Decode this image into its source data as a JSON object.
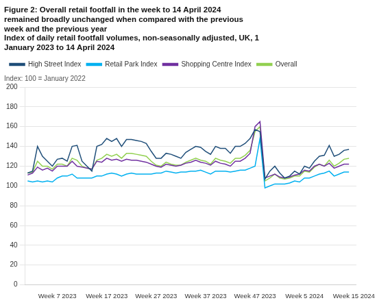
{
  "chart_data": {
    "type": "line",
    "title": [
      "Figure 2: Overall retail footfall in the week to 14 April 2024",
      "remained broadly unchanged when compared with the previous",
      "week and the previous year"
    ],
    "subtitle": [
      "Index of daily retail footfall volumes, non-seasonally adjusted, UK, 1",
      "January 2023 to 14 April 2024"
    ],
    "annotations": [
      "Index: 100 = January 2022"
    ],
    "categories": [
      null,
      null,
      null,
      null,
      null,
      null,
      "Week 7 2023",
      null,
      null,
      null,
      null,
      null,
      null,
      null,
      null,
      null,
      "Week 17 2023",
      null,
      null,
      null,
      null,
      null,
      null,
      null,
      null,
      null,
      "Week 27 2023",
      null,
      null,
      null,
      null,
      null,
      null,
      null,
      null,
      null,
      "Week 37 2023",
      null,
      null,
      null,
      null,
      null,
      null,
      null,
      null,
      null,
      "Week 47 2023",
      null,
      null,
      null,
      null,
      null,
      null,
      null,
      null,
      null,
      "Week 5 2024",
      null,
      null,
      null,
      null,
      null,
      null,
      null,
      null,
      null,
      "Week 15 2024"
    ],
    "series": [
      {
        "name": "High Street Index",
        "color": "#1f4e79",
        "values": [
          113,
          115,
          140,
          130,
          125,
          120,
          127,
          128,
          125,
          140,
          141,
          125,
          120,
          115,
          140,
          142,
          148,
          145,
          148,
          140,
          147,
          147,
          146,
          145,
          143,
          135,
          128,
          128,
          133,
          132,
          130,
          128,
          134,
          137,
          140,
          139,
          135,
          132,
          140,
          138,
          138,
          133,
          140,
          140,
          143,
          148,
          157,
          155,
          107,
          115,
          120,
          113,
          108,
          110,
          115,
          112,
          120,
          118,
          125,
          130,
          131,
          141,
          130,
          132,
          136,
          137,
          null
        ]
      },
      {
        "name": "Retail Park Index",
        "color": "#00b0f0",
        "values": [
          105,
          104,
          105,
          104,
          105,
          104,
          108,
          110,
          110,
          112,
          108,
          108,
          108,
          108,
          110,
          110,
          112,
          113,
          112,
          110,
          112,
          113,
          112,
          112,
          112,
          112,
          113,
          113,
          115,
          114,
          113,
          114,
          114,
          115,
          115,
          116,
          114,
          112,
          115,
          115,
          115,
          114,
          115,
          116,
          116,
          118,
          120,
          148,
          98,
          100,
          102,
          102,
          102,
          103,
          105,
          104,
          108,
          108,
          110,
          112,
          113,
          115,
          110,
          112,
          114,
          114,
          null
        ]
      },
      {
        "name": "Shopping Centre Index",
        "color": "#7030a0",
        "values": [
          111,
          113,
          119,
          116,
          118,
          115,
          120,
          120,
          120,
          125,
          120,
          119,
          118,
          117,
          125,
          124,
          128,
          126,
          127,
          125,
          127,
          126,
          126,
          125,
          124,
          122,
          120,
          119,
          122,
          121,
          120,
          121,
          123,
          124,
          126,
          124,
          123,
          121,
          125,
          123,
          122,
          120,
          125,
          125,
          128,
          133,
          160,
          165,
          108,
          110,
          112,
          109,
          108,
          109,
          111,
          112,
          116,
          115,
          120,
          122,
          120,
          123,
          118,
          120,
          122,
          122,
          null
        ]
      },
      {
        "name": "Overall",
        "color": "#92d050",
        "values": [
          113,
          114,
          125,
          120,
          120,
          117,
          122,
          122,
          120,
          128,
          126,
          120,
          118,
          117,
          126,
          128,
          132,
          130,
          132,
          128,
          133,
          133,
          132,
          131,
          130,
          125,
          121,
          120,
          124,
          122,
          121,
          121,
          124,
          126,
          128,
          126,
          125,
          122,
          128,
          126,
          125,
          123,
          128,
          128,
          131,
          136,
          155,
          160,
          105,
          108,
          112,
          108,
          107,
          108,
          110,
          110,
          115,
          114,
          119,
          122,
          120,
          126,
          120,
          123,
          127,
          128,
          null
        ]
      }
    ],
    "ylim": [
      0,
      200
    ],
    "yticks": [
      0,
      20,
      40,
      60,
      80,
      100,
      120,
      140,
      160,
      180,
      200
    ],
    "grid": true,
    "legend": "top"
  }
}
